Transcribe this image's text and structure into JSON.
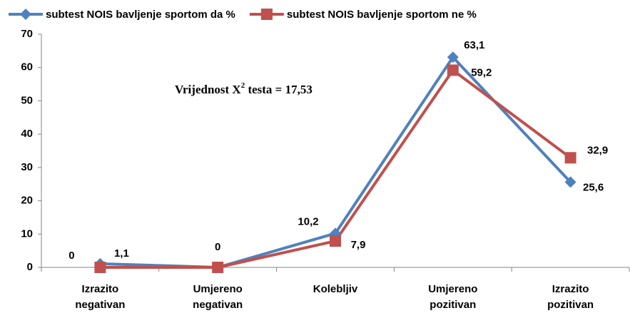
{
  "chart_data": {
    "type": "line",
    "categories": [
      "Izrazito negativan",
      "Umjereno negativan",
      "Kolebljiv",
      "Umjereno pozitivan",
      "Izrazito pozitivan"
    ],
    "series": [
      {
        "name": "subtest NOIS bavljenje sportom da %",
        "color": "#4f81bd",
        "marker": "diamond",
        "values": [
          1.1,
          0,
          10.2,
          63.1,
          25.6
        ],
        "value_labels": [
          "1,1",
          null,
          "10,2",
          "63,1",
          "25,6"
        ]
      },
      {
        "name": "subtest NOIS bavljenje sportom ne %",
        "color": "#c0504d",
        "marker": "square",
        "values": [
          0,
          0,
          7.9,
          59.2,
          32.9
        ],
        "value_labels": [
          "0",
          "0",
          "7,9",
          "59,2",
          "32,9"
        ]
      }
    ],
    "annotation": [
      "Vrijednost X",
      "2",
      " testa = 17,53"
    ],
    "ylim": [
      0,
      70
    ],
    "yticks": [
      0,
      10,
      20,
      30,
      40,
      50,
      60,
      70
    ],
    "grid": false,
    "legend": "top"
  }
}
